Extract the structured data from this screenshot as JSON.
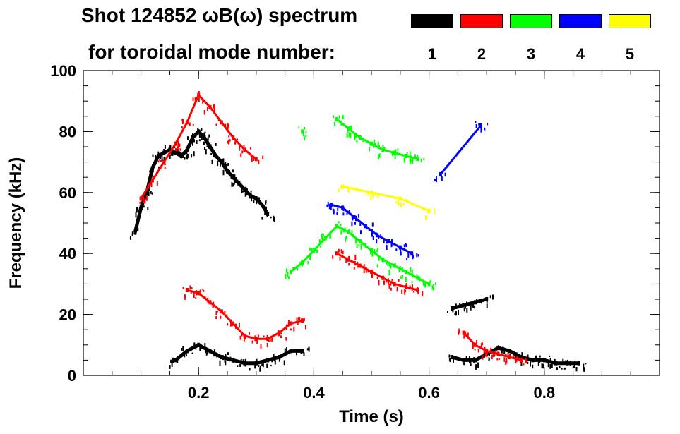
{
  "chart_data": {
    "type": "scatter",
    "title_line1": "Shot 124852 ωB(ω) spectrum",
    "title_line2": "for toroidal mode number:",
    "xlabel": "Time (s)",
    "ylabel": "Frequency (kHz)",
    "xlim": [
      0.0,
      1.0
    ],
    "ylim": [
      0,
      100
    ],
    "x_ticks": [
      0.2,
      0.4,
      0.6,
      0.8
    ],
    "x_tick_labels": [
      "0.2",
      "0.4",
      "0.6",
      "0.8"
    ],
    "y_ticks": [
      0,
      20,
      40,
      60,
      80,
      100
    ],
    "y_tick_labels": [
      "0",
      "20",
      "40",
      "60",
      "80",
      "100"
    ],
    "legend": [
      {
        "label": "1",
        "color": "#000000"
      },
      {
        "label": "2",
        "color": "#ff0000"
      },
      {
        "label": "3",
        "color": "#00ff00"
      },
      {
        "label": "4",
        "color": "#0000ff"
      },
      {
        "label": "5",
        "color": "#ffff00"
      }
    ],
    "series": [
      {
        "name": "1",
        "color": "#000000",
        "x": [
          0.09,
          0.1,
          0.11,
          0.12,
          0.13,
          0.14,
          0.15,
          0.16,
          0.17,
          0.18,
          0.19,
          0.2,
          0.21,
          0.22,
          0.23,
          0.24,
          0.25,
          0.26,
          0.27,
          0.28,
          0.29,
          0.3,
          0.31,
          0.32
        ],
        "y": [
          47,
          55,
          60,
          68,
          72,
          73,
          74,
          73,
          72,
          74,
          78,
          80,
          78,
          75,
          72,
          70,
          67,
          65,
          63,
          61,
          59,
          58,
          56,
          53
        ]
      },
      {
        "name": "1",
        "color": "#000000",
        "x": [
          0.16,
          0.18,
          0.2,
          0.22,
          0.24,
          0.26,
          0.28,
          0.3,
          0.32,
          0.34,
          0.36,
          0.38
        ],
        "y": [
          5,
          8,
          10,
          8,
          6,
          5,
          4,
          4,
          5,
          6,
          8,
          8
        ]
      },
      {
        "name": "1",
        "color": "#000000",
        "x": [
          0.64,
          0.66,
          0.68,
          0.7
        ],
        "y": [
          22,
          23,
          24,
          25
        ]
      },
      {
        "name": "1",
        "color": "#000000",
        "x": [
          0.64,
          0.66,
          0.68,
          0.7,
          0.72,
          0.74,
          0.76,
          0.78,
          0.8,
          0.82,
          0.84,
          0.86
        ],
        "y": [
          6,
          5,
          5,
          7,
          9,
          8,
          6,
          5,
          5,
          4,
          4,
          4
        ]
      },
      {
        "name": "2",
        "color": "#ff0000",
        "x": [
          0.1,
          0.12,
          0.14,
          0.16,
          0.18,
          0.2,
          0.22,
          0.24,
          0.26,
          0.28,
          0.3
        ],
        "y": [
          58,
          64,
          70,
          76,
          83,
          92,
          88,
          83,
          78,
          74,
          71
        ]
      },
      {
        "name": "2",
        "color": "#ff0000",
        "x": [
          0.18,
          0.2,
          0.22,
          0.24,
          0.26,
          0.28,
          0.3,
          0.32,
          0.34,
          0.36,
          0.38
        ],
        "y": [
          28,
          27,
          24,
          21,
          17,
          13,
          12,
          12,
          14,
          17,
          18
        ]
      },
      {
        "name": "2",
        "color": "#ff0000",
        "x": [
          0.44,
          0.46,
          0.48,
          0.5,
          0.52,
          0.54,
          0.56,
          0.58
        ],
        "y": [
          40,
          38,
          36,
          34,
          32,
          30,
          29,
          28
        ]
      },
      {
        "name": "2",
        "color": "#ff0000",
        "x": [
          0.66,
          0.68,
          0.7,
          0.72,
          0.74,
          0.76
        ],
        "y": [
          14,
          10,
          8,
          7,
          6,
          5
        ]
      },
      {
        "name": "3",
        "color": "#00ff00",
        "x": [
          0.44,
          0.46,
          0.48,
          0.5,
          0.52,
          0.54,
          0.56,
          0.58
        ],
        "y": [
          84,
          81,
          78,
          76,
          74,
          73,
          72,
          71
        ]
      },
      {
        "name": "3",
        "color": "#00ff00",
        "x": [
          0.36,
          0.38,
          0.4,
          0.42,
          0.44,
          0.46,
          0.48,
          0.5,
          0.52,
          0.54,
          0.56,
          0.58,
          0.6
        ],
        "y": [
          34,
          37,
          41,
          45,
          49,
          47,
          44,
          41,
          38,
          36,
          34,
          32,
          30
        ]
      },
      {
        "name": "3",
        "color": "#00ff00",
        "x": [
          0.38
        ],
        "y": [
          80
        ]
      },
      {
        "name": "4",
        "color": "#0000ff",
        "x": [
          0.43,
          0.45,
          0.47,
          0.49,
          0.51,
          0.53,
          0.55,
          0.57
        ],
        "y": [
          56,
          55,
          52,
          49,
          46,
          44,
          42,
          40
        ]
      },
      {
        "name": "4",
        "color": "#0000ff",
        "x": [
          0.62,
          0.69
        ],
        "y": [
          66,
          82
        ]
      },
      {
        "name": "5",
        "color": "#ffff00",
        "x": [
          0.45,
          0.5,
          0.55,
          0.6
        ],
        "y": [
          62,
          60,
          58,
          54
        ]
      }
    ]
  }
}
